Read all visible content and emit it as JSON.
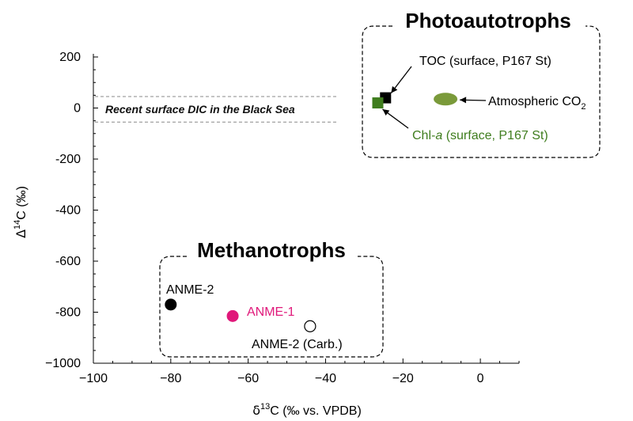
{
  "chart_data": {
    "type": "scatter",
    "xlabel": "δ13C (‰ vs. VPDB)",
    "ylabel": "Δ14C (‰)",
    "xlim": [
      -100,
      10
    ],
    "ylim": [
      -1000,
      200
    ],
    "x_ticks": [
      -100,
      -80,
      -60,
      -40,
      -20,
      0
    ],
    "y_ticks": [
      200,
      0,
      -200,
      -400,
      -600,
      -800,
      -1000
    ],
    "x_tick_labels": [
      "−100",
      "−80",
      "−60",
      "−40",
      "−20",
      "0"
    ],
    "y_tick_labels": [
      "200",
      "0",
      "-200",
      "-400",
      "-600",
      "-800",
      "−1000"
    ],
    "band": {
      "label": "Recent surface DIC in the Black Sea",
      "y_range": [
        -55,
        45
      ]
    },
    "groups": [
      {
        "title": "Photoautotrophs"
      },
      {
        "title": "Methanotrophs"
      }
    ],
    "points": [
      {
        "label": "TOC (surface, P167 St)",
        "x": -24.5,
        "y": 40,
        "marker": "square",
        "color": "#000000"
      },
      {
        "label_prefix": "Chl-",
        "label_italic": "a",
        "label_suffix": " (surface, P167 St)",
        "x": -26.5,
        "y": 20,
        "marker": "square",
        "color": "#3f7d1e"
      },
      {
        "label_prefix": "Atmospheric CO",
        "label_sub": "2",
        "x": -9,
        "y": 35,
        "marker": "ellipse",
        "color": "#7a9a3a"
      },
      {
        "label": "ANME-2",
        "x": -80,
        "y": -770,
        "marker": "circle",
        "color": "#000000"
      },
      {
        "label": "ANME-1",
        "x": -64,
        "y": -815,
        "marker": "circle",
        "color": "#e0187a"
      },
      {
        "label": "ANME-2 (Carb.)",
        "x": -44,
        "y": -855,
        "marker": "open-circle",
        "color": "#000000"
      }
    ]
  }
}
